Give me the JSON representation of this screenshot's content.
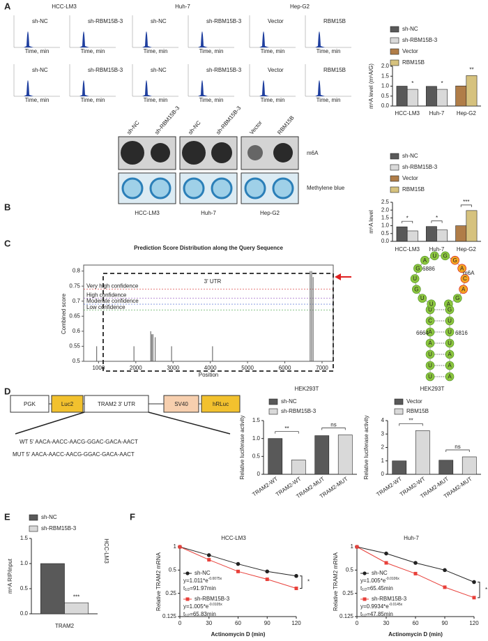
{
  "panel_labels": [
    "A",
    "B",
    "C",
    "D",
    "E",
    "F"
  ],
  "panel_a": {
    "cell_lines": [
      "HCC-LM3",
      "Huh-7",
      "Hep-G2"
    ],
    "samples_top": [
      "sh-NC",
      "sh-RBM15B-3",
      "sh-NC",
      "sh-RBM15B-3",
      "Vector",
      "RBM15B"
    ],
    "samples_bottom": [
      "sh-NC",
      "sh-RBM15B-3",
      "sh-NC",
      "sh-RBM15B-3",
      "Vector",
      "RBM15B"
    ],
    "x_label": "Time, min"
  },
  "panel_b": {
    "lanes": [
      "sh-NC",
      "sh-RBM15B-3",
      "sh-NC",
      "sh-RBM15B-3",
      "Vector",
      "RBM15B"
    ],
    "rows": [
      "m6A",
      "Methylene blue"
    ],
    "cell_lines": [
      "HCC-LM3",
      "Huh-7",
      "Hep-G2"
    ]
  },
  "panel_c_structure": {
    "nucleotides": [
      "U",
      "U",
      "U",
      "A",
      "A",
      "C",
      "U",
      "U",
      "U",
      "G",
      "U",
      "G",
      "A",
      "U",
      "G",
      "G",
      "A",
      "C",
      "A",
      "G",
      "A",
      "G",
      "U",
      "U",
      "U",
      "A",
      "A",
      "A"
    ],
    "labels": [
      "6886",
      "m6A",
      "6664",
      "6816"
    ]
  },
  "panel_d_construct": {
    "elements": [
      "PGK",
      "Luc2",
      "TRAM2 3' UTR",
      "SV40",
      "hRLuc"
    ],
    "wt": "WT 5' AACA-AACC-AACG-GGAC-GACA-AACT",
    "mut": "MUT 5' AACA-AACC-AACG-GGAC-GACA-AACT"
  },
  "chart_data": [
    {
      "type": "bar",
      "y_label": "m⁶A level (m⁶A/G)",
      "categories": [
        "HCC-LM3",
        "Huh-7",
        "Hep-G2"
      ],
      "series": [
        {
          "name": "sh-NC",
          "color": "#595959",
          "values": [
            1.0,
            0.99,
            null
          ]
        },
        {
          "name": "sh-RBM15B-3",
          "color": "#d9d9d9",
          "values": [
            0.84,
            0.84,
            null
          ]
        },
        {
          "name": "Vector",
          "color": "#b07d48",
          "values": [
            null,
            null,
            1.01
          ]
        },
        {
          "name": "RBM15B",
          "color": "#d6c27e",
          "values": [
            null,
            null,
            1.53
          ]
        }
      ],
      "ylim": [
        0,
        2
      ],
      "yticks": [
        {
          "value": 0,
          "label": "0.0"
        },
        {
          "value": 0.5,
          "label": "0.5"
        },
        {
          "value": 1,
          "label": "1.0"
        },
        {
          "value": 1.5,
          "label": "1.5"
        },
        {
          "value": 2,
          "label": "2.0"
        }
      ],
      "significance": [
        "*",
        "*",
        "**"
      ],
      "bracket": false
    },
    {
      "type": "bar",
      "y_label": "m⁶A level",
      "categories": [
        "HCC-LM3",
        "Huh-7",
        "Hep-G2"
      ],
      "series": [
        {
          "name": "sh-NC",
          "color": "#595959",
          "values": [
            0.93,
            0.95,
            null
          ]
        },
        {
          "name": "sh-RBM15B-3",
          "color": "#d9d9d9",
          "values": [
            0.67,
            0.73,
            null
          ]
        },
        {
          "name": "Vector",
          "color": "#b07d48",
          "values": [
            null,
            null,
            1.0
          ]
        },
        {
          "name": "RBM15B",
          "color": "#d6c27e",
          "values": [
            null,
            null,
            1.97
          ]
        }
      ],
      "ylim": [
        0,
        2.5
      ],
      "yticks": [
        {
          "value": 0,
          "label": "0.0"
        },
        {
          "value": 0.5,
          "label": "0.5"
        },
        {
          "value": 1,
          "label": "1.0"
        },
        {
          "value": 1.5,
          "label": "1.5"
        },
        {
          "value": 2,
          "label": "2.0"
        },
        {
          "value": 2.5,
          "label": "2.5"
        }
      ],
      "significance": [
        "*",
        "*",
        "***"
      ],
      "bracket": true
    },
    {
      "type": "spike",
      "title": "Prediction Score Distribution along the Query Sequence",
      "x_label": "Position",
      "y_label": "Combined score",
      "region_label": "3' UTR",
      "x": [
        950,
        1950,
        2400,
        2430,
        2460,
        2520,
        2960,
        4060,
        6680,
        6720,
        6760
      ],
      "values": [
        0.55,
        0.55,
        0.6,
        0.59,
        0.59,
        0.58,
        0.55,
        0.55,
        0.8,
        0.8,
        0.78
      ],
      "color": "#555555",
      "xlim": [
        600,
        7300
      ],
      "ylim": [
        0.5,
        0.82
      ],
      "xticks": [
        1000,
        2000,
        3000,
        4000,
        5000,
        6000,
        7000
      ],
      "yticks": [
        0.5,
        0.55,
        0.6,
        0.65,
        0.7,
        0.75,
        0.8
      ],
      "thresholds": [
        {
          "name": "Very high confidence",
          "value": 0.74,
          "color": "#e05050"
        },
        {
          "name": "High confidence",
          "value": 0.71,
          "color": "#9050c0"
        },
        {
          "name": "Moderate confidence",
          "value": 0.69,
          "color": "#4060d0"
        },
        {
          "name": "Low confidence",
          "value": 0.67,
          "color": "#40a040"
        }
      ]
    },
    {
      "type": "bar",
      "title": "HEK293T",
      "y_label": "Relative luciferase activity",
      "categories": [
        "TRAM2-WT",
        "TRAM2-WT",
        "TRAM2-MUT",
        "TRAM2-MUT"
      ],
      "series": [
        {
          "name": "sh-NC",
          "color": "#595959",
          "values": [
            1.0,
            null,
            1.08,
            null
          ]
        },
        {
          "name": "sh-RBM15B-3",
          "color": "#d9d9d9",
          "values": [
            null,
            0.4,
            null,
            1.1
          ]
        }
      ],
      "ylim": [
        0,
        1.5
      ],
      "yticks": [
        0,
        0.5,
        {
          "value": 1,
          "label": "1.0"
        },
        1.5
      ],
      "pair_significance": [
        "**",
        "ns"
      ]
    },
    {
      "type": "bar",
      "title": "HEK293T",
      "y_label": "Relative luciferase activity",
      "categories": [
        "TRAM2-WT",
        "TRAM2-WT",
        "TRAM2-MUT",
        "TRAM2-MUT"
      ],
      "series": [
        {
          "name": "Vector",
          "color": "#595959",
          "values": [
            1.0,
            null,
            1.05,
            null
          ]
        },
        {
          "name": "RBM15B",
          "color": "#d9d9d9",
          "values": [
            null,
            3.25,
            null,
            1.3
          ]
        }
      ],
      "ylim": [
        0,
        4
      ],
      "yticks": [
        0,
        1,
        2,
        3,
        4
      ],
      "pair_significance": [
        "**",
        "ns"
      ]
    },
    {
      "type": "bar",
      "y_label": "m⁶A RIP/input",
      "side_label": "HCC-LM3",
      "categories": [
        "TRAM2"
      ],
      "series": [
        {
          "name": "sh-NC",
          "color": "#595959",
          "values": [
            1.0
          ]
        },
        {
          "name": "sh-RBM15B-3",
          "color": "#d9d9d9",
          "values": [
            0.22
          ]
        }
      ],
      "ylim": [
        0,
        1.5
      ],
      "yticks": [
        {
          "value": 0,
          "label": "0.0"
        },
        {
          "value": 0.5,
          "label": "0.5"
        },
        {
          "value": 1,
          "label": "1.0"
        },
        {
          "value": 1.5,
          "label": "1.5"
        }
      ],
      "significance": [
        "***"
      ],
      "bracket": false
    },
    {
      "type": "line",
      "title": "HCC-LM3",
      "x_label": "Actinomycin D (min)",
      "y_label": "Relative TRAM2 mRNA",
      "x": [
        0,
        30,
        60,
        90,
        120
      ],
      "xlim": [
        0,
        120
      ],
      "xticks": [
        0,
        30,
        60,
        90,
        120
      ],
      "ylim": [
        0.125,
        1
      ],
      "yticks": [
        0.125,
        0.25,
        0.5,
        1
      ],
      "log_y": true,
      "series": [
        {
          "name": "sh-NC",
          "color": "#222222",
          "marker": "circle",
          "values": [
            1,
            0.78,
            0.6,
            0.48,
            0.42
          ],
          "equation": [
            "y=1.011*e",
            "-0.0075x"
          ],
          "half_life": [
            "t",
            "1/2",
            "=91.97min"
          ]
        },
        {
          "name": "sh-RBM15B-3",
          "color": "#e8403a",
          "marker": "square",
          "values": [
            1,
            0.68,
            0.48,
            0.38,
            0.29
          ],
          "equation": [
            "y=1.005*e",
            "-0.0105x"
          ],
          "half_life": [
            "t",
            "1/2",
            "=65.83min"
          ]
        }
      ],
      "significance": "*"
    },
    {
      "type": "line",
      "title": "Huh-7",
      "x_label": "Actinomycin D (min)",
      "y_label": "Relative TRAM2 mRNA",
      "x": [
        0,
        30,
        60,
        90,
        120
      ],
      "xlim": [
        0,
        120
      ],
      "xticks": [
        0,
        30,
        60,
        90,
        120
      ],
      "ylim": [
        0.125,
        1
      ],
      "yticks": [
        0.125,
        0.25,
        0.5,
        1
      ],
      "log_y": true,
      "series": [
        {
          "name": "sh-NC",
          "color": "#222222",
          "marker": "circle",
          "values": [
            1,
            0.82,
            0.62,
            0.5,
            0.35
          ],
          "equation": [
            "y=1.005*e",
            "-0.0106x"
          ],
          "half_life": [
            "t",
            "1/2",
            "=65.45min"
          ]
        },
        {
          "name": "sh-RBM15B-3",
          "color": "#e8403a",
          "marker": "square",
          "values": [
            1,
            0.62,
            0.45,
            0.3,
            0.22
          ],
          "equation": [
            "y=0.9934*e",
            "-0.0145x"
          ],
          "half_life": [
            "t",
            "1/2",
            "=47.85min"
          ]
        }
      ],
      "significance": "*"
    }
  ]
}
